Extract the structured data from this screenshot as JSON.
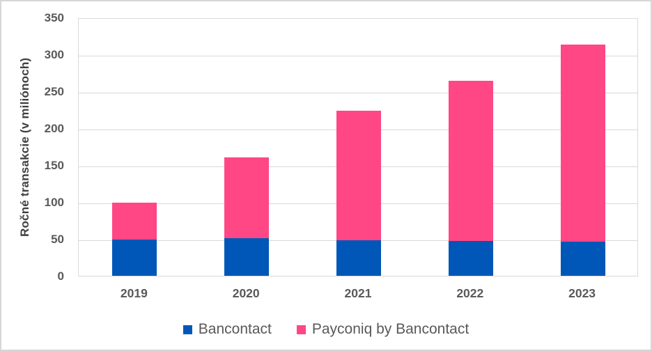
{
  "chart_data": {
    "type": "bar",
    "stacked": true,
    "title": "",
    "xlabel": "",
    "ylabel": "Ročné transakcie (v miliónoch)",
    "categories": [
      "2019",
      "2020",
      "2021",
      "2022",
      "2023"
    ],
    "series": [
      {
        "name": "Bancontact",
        "color": "#0057B8",
        "values": [
          49,
          51,
          48,
          47,
          46
        ]
      },
      {
        "name": "Payconiq by Bancontact",
        "color": "#FF4785",
        "values": [
          50,
          109,
          176,
          217,
          267
        ]
      }
    ],
    "stacked_totals": [
      99,
      160,
      224,
      264,
      313
    ],
    "ylim": [
      0,
      350
    ],
    "ytick_step": 50,
    "ytick_labels": [
      "0",
      "50",
      "100",
      "150",
      "200",
      "250",
      "300",
      "350"
    ],
    "grid": true,
    "gridline_color": "#D9D9D9",
    "axis_text_color": "#595959",
    "legend_position": "bottom"
  }
}
